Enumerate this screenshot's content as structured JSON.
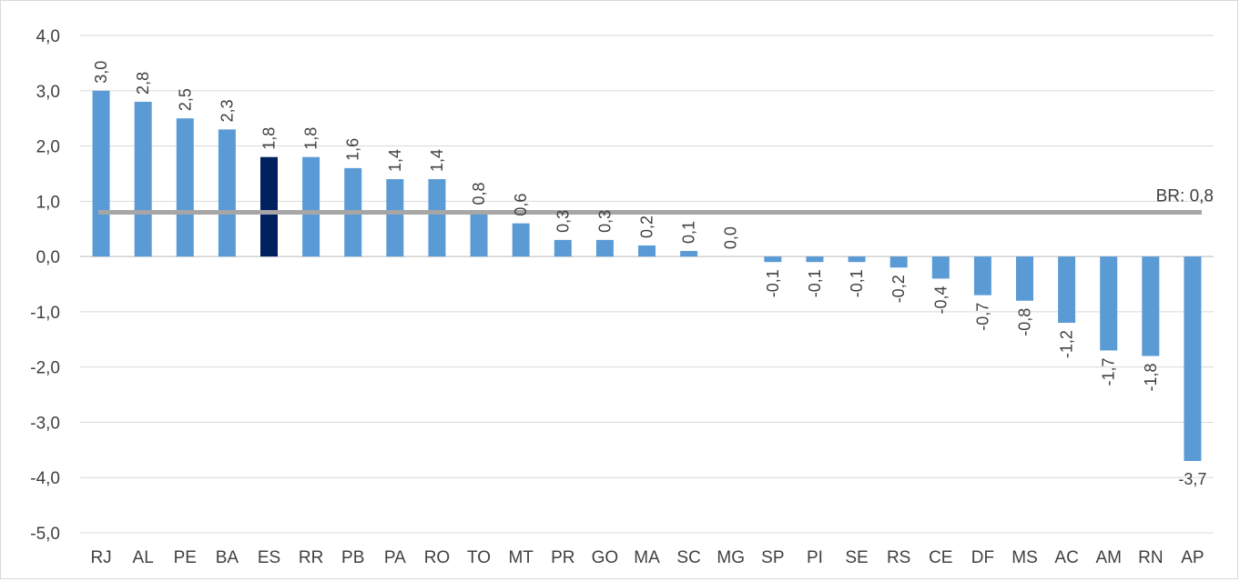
{
  "chart_data": {
    "type": "bar",
    "categories": [
      "RJ",
      "AL",
      "PE",
      "BA",
      "ES",
      "RR",
      "PB",
      "PA",
      "RO",
      "TO",
      "MT",
      "PR",
      "GO",
      "MA",
      "SC",
      "MG",
      "SP",
      "PI",
      "SE",
      "RS",
      "CE",
      "DF",
      "MS",
      "AC",
      "AM",
      "RN",
      "AP"
    ],
    "values": [
      3.0,
      2.8,
      2.5,
      2.3,
      1.8,
      1.8,
      1.6,
      1.4,
      1.4,
      0.8,
      0.6,
      0.3,
      0.3,
      0.2,
      0.1,
      0.0,
      -0.1,
      -0.1,
      -0.1,
      -0.2,
      -0.4,
      -0.7,
      -0.8,
      -1.2,
      -1.7,
      -1.8,
      -3.7
    ],
    "data_labels": [
      "3,0",
      "2,8",
      "2,5",
      "2,3",
      "1,8",
      "1,8",
      "1,6",
      "1,4",
      "1,4",
      "0,8",
      "0,6",
      "0,3",
      "0,3",
      "0,2",
      "0,1",
      "0,0",
      "-0,1",
      "-0,1",
      "-0,1",
      "-0,2",
      "-0,4",
      "-0,7",
      "-0,8",
      "-1,2",
      "-1,7",
      "-1,8",
      "-3,7"
    ],
    "highlight_category": "ES",
    "ylim": [
      -5.0,
      4.0
    ],
    "yticks": [
      4.0,
      3.0,
      2.0,
      1.0,
      0.0,
      -1.0,
      -2.0,
      -3.0,
      -4.0,
      -5.0
    ],
    "ytick_labels": [
      "4,0",
      "3,0",
      "2,0",
      "1,0",
      "0,0",
      "-1,0",
      "-2,0",
      "-3,0",
      "-4,0",
      "-5,0"
    ],
    "reference_line": {
      "value": 0.8,
      "label": "BR: 0,8"
    },
    "grid": true,
    "title": "",
    "xlabel": "",
    "ylabel": "",
    "colors": {
      "bar": "#5b9bd5",
      "highlight": "#002060",
      "reference": "#a6a6a6",
      "grid": "#d9d9d9",
      "text": "#404040"
    }
  }
}
